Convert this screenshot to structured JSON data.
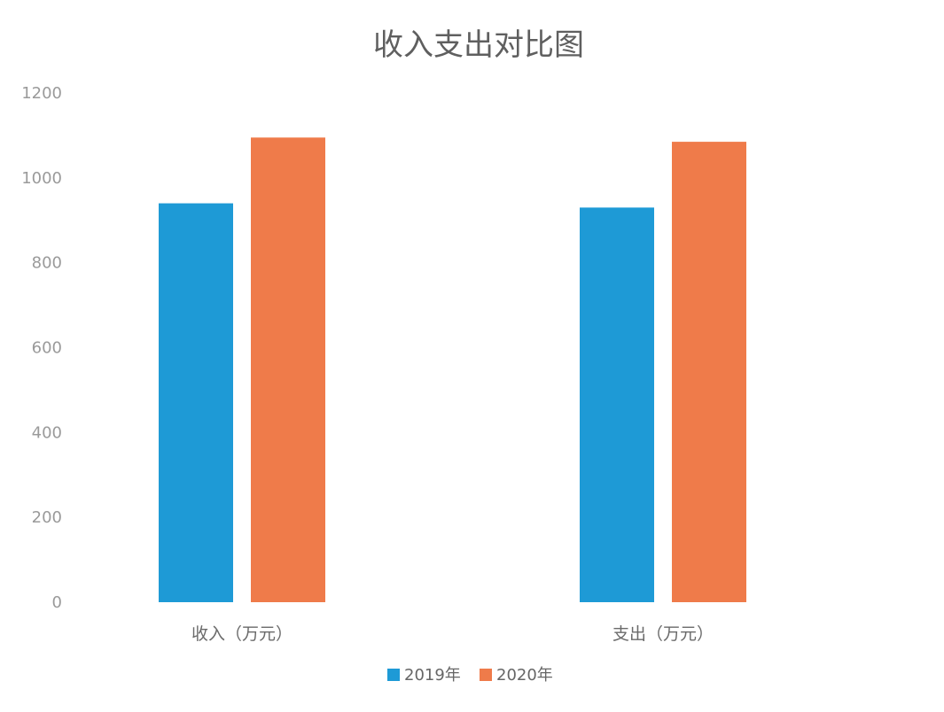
{
  "chart_data": {
    "type": "bar",
    "title": "收入支出对比图",
    "categories": [
      "收入（万元）",
      "支出（万元）"
    ],
    "series": [
      {
        "name": "2019年",
        "values": [
          940,
          930
        ],
        "color": "#1e9ad6"
      },
      {
        "name": "2020年",
        "values": [
          1095,
          1085
        ],
        "color": "#ef7b4a"
      }
    ],
    "yticks": [
      0,
      200,
      400,
      600,
      800,
      1000,
      1200
    ],
    "ylim": [
      0,
      1200
    ],
    "xlabel": "",
    "ylabel": "",
    "grid": false,
    "legend_position": "bottom-center"
  }
}
